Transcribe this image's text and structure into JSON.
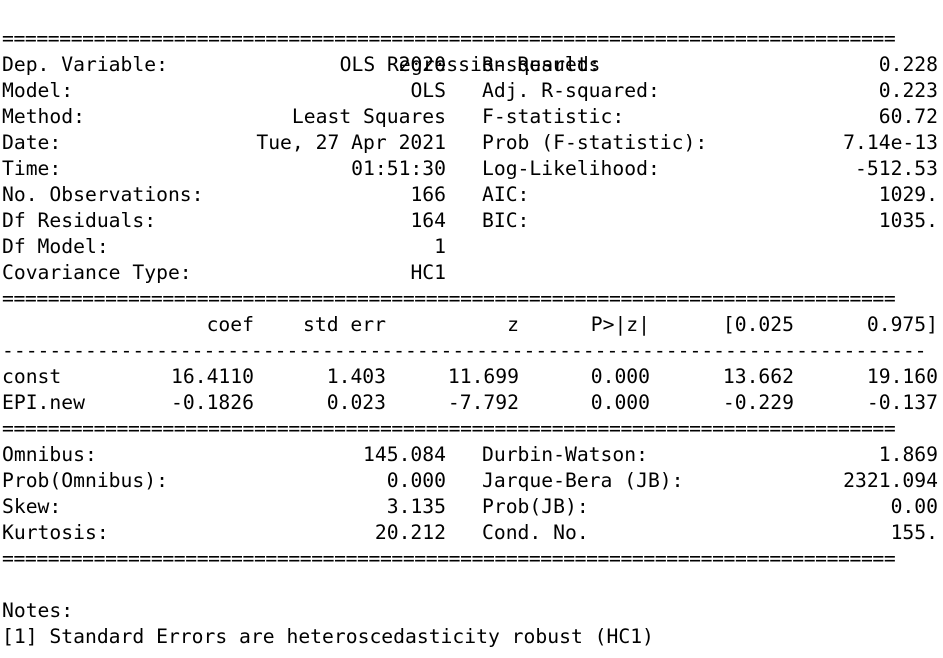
{
  "title": "OLS Regression Results",
  "rule_eq": "==============================================================================",
  "rule_dash": "------------------------------------------------------------------------------",
  "summary_left": [
    {
      "label": "Dep. Variable:",
      "value": "2020"
    },
    {
      "label": "Model:",
      "value": "OLS"
    },
    {
      "label": "Method:",
      "value": "Least Squares"
    },
    {
      "label": "Date:",
      "value": "Tue, 27 Apr 2021"
    },
    {
      "label": "Time:",
      "value": "01:51:30"
    },
    {
      "label": "No. Observations:",
      "value": "166"
    },
    {
      "label": "Df Residuals:",
      "value": "164"
    },
    {
      "label": "Df Model:",
      "value": "1"
    },
    {
      "label": "Covariance Type:",
      "value": "HC1"
    }
  ],
  "summary_right": [
    {
      "label": "R-squared:",
      "value": "0.228"
    },
    {
      "label": "Adj. R-squared:",
      "value": "0.223"
    },
    {
      "label": "F-statistic:",
      "value": "60.72"
    },
    {
      "label": "Prob (F-statistic):",
      "value": "7.14e-13"
    },
    {
      "label": "Log-Likelihood:",
      "value": "-512.53"
    },
    {
      "label": "AIC:",
      "value": "1029."
    },
    {
      "label": "BIC:",
      "value": "1035."
    }
  ],
  "coef_headers": [
    "coef",
    "std err",
    "z",
    "P>|z|",
    "[0.025",
    "0.975]"
  ],
  "coef_rows": [
    {
      "name": "const",
      "values": [
        "16.4110",
        "1.403",
        "11.699",
        "0.000",
        "13.662",
        "19.160"
      ]
    },
    {
      "name": "EPI.new",
      "values": [
        "-0.1826",
        "0.023",
        "-7.792",
        "0.000",
        "-0.229",
        "-0.137"
      ]
    }
  ],
  "diag_left": [
    {
      "label": "Omnibus:",
      "value": "145.084"
    },
    {
      "label": "Prob(Omnibus):",
      "value": "0.000"
    },
    {
      "label": "Skew:",
      "value": "3.135"
    },
    {
      "label": "Kurtosis:",
      "value": "20.212"
    }
  ],
  "diag_right": [
    {
      "label": "Durbin-Watson:",
      "value": "1.869"
    },
    {
      "label": "Jarque-Bera (JB):",
      "value": "2321.094"
    },
    {
      "label": "Prob(JB):",
      "value": "0.00"
    },
    {
      "label": "Cond. No.",
      "value": "155."
    }
  ],
  "notes_heading": "Notes:",
  "notes": [
    "[1] Standard Errors are heteroscedasticity robust (HC1)"
  ]
}
